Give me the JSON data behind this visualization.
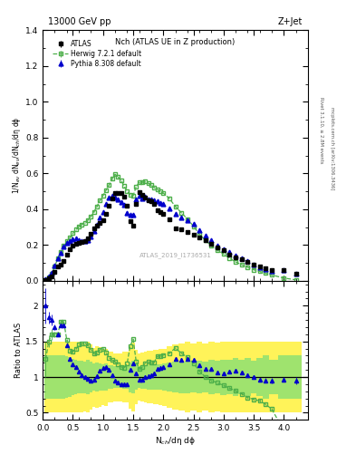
{
  "title_top": "13000 GeV pp",
  "title_right": "Z+Jet",
  "plot_title": "Nch (ATLAS UE in Z production)",
  "ylabel_main": "1/N$_{ev}$ dN$_{ev}$/dN$_{ch}$/dη dϕ",
  "ylabel_ratio": "Ratio to ATLAS",
  "xlabel": "N$_{ch}$/dη dϕ",
  "watermark": "ATLAS_2019_I1736531",
  "right_label": "mcplots.cern.ch [arXiv:1306.3436]",
  "rivet_label": "Rivet 3.1.10, ≥ 2.8M events",
  "atlas_x": [
    0.05,
    0.1,
    0.15,
    0.2,
    0.25,
    0.3,
    0.35,
    0.4,
    0.45,
    0.5,
    0.55,
    0.6,
    0.65,
    0.7,
    0.75,
    0.8,
    0.85,
    0.9,
    0.95,
    1.0,
    1.05,
    1.1,
    1.15,
    1.2,
    1.25,
    1.3,
    1.35,
    1.4,
    1.45,
    1.5,
    1.55,
    1.6,
    1.65,
    1.7,
    1.75,
    1.8,
    1.85,
    1.9,
    1.95,
    2.0,
    2.1,
    2.2,
    2.3,
    2.4,
    2.5,
    2.6,
    2.7,
    2.8,
    2.9,
    3.0,
    3.1,
    3.2,
    3.3,
    3.4,
    3.5,
    3.6,
    3.7,
    3.8,
    4.0,
    4.2
  ],
  "atlas_y": [
    0.004,
    0.012,
    0.025,
    0.05,
    0.078,
    0.09,
    0.11,
    0.145,
    0.175,
    0.195,
    0.205,
    0.21,
    0.215,
    0.22,
    0.235,
    0.26,
    0.29,
    0.31,
    0.325,
    0.34,
    0.375,
    0.42,
    0.46,
    0.49,
    0.49,
    0.49,
    0.47,
    0.42,
    0.335,
    0.31,
    0.43,
    0.495,
    0.48,
    0.465,
    0.45,
    0.445,
    0.43,
    0.395,
    0.385,
    0.375,
    0.345,
    0.295,
    0.285,
    0.27,
    0.255,
    0.24,
    0.225,
    0.205,
    0.185,
    0.17,
    0.148,
    0.13,
    0.118,
    0.105,
    0.09,
    0.078,
    0.068,
    0.058,
    0.06,
    0.04
  ],
  "atlas_yerr": [
    0.001,
    0.002,
    0.003,
    0.004,
    0.005,
    0.005,
    0.005,
    0.006,
    0.007,
    0.007,
    0.007,
    0.007,
    0.007,
    0.007,
    0.008,
    0.008,
    0.008,
    0.009,
    0.009,
    0.009,
    0.01,
    0.01,
    0.011,
    0.011,
    0.011,
    0.011,
    0.011,
    0.01,
    0.01,
    0.01,
    0.011,
    0.011,
    0.011,
    0.011,
    0.011,
    0.011,
    0.011,
    0.01,
    0.01,
    0.01,
    0.01,
    0.009,
    0.009,
    0.009,
    0.008,
    0.008,
    0.007,
    0.007,
    0.006,
    0.006,
    0.005,
    0.005,
    0.004,
    0.004,
    0.003,
    0.003,
    0.003,
    0.002,
    0.003,
    0.002
  ],
  "herwig_x": [
    0.05,
    0.1,
    0.15,
    0.2,
    0.25,
    0.3,
    0.35,
    0.4,
    0.45,
    0.5,
    0.55,
    0.6,
    0.65,
    0.7,
    0.75,
    0.8,
    0.85,
    0.9,
    0.95,
    1.0,
    1.05,
    1.1,
    1.15,
    1.2,
    1.25,
    1.3,
    1.35,
    1.4,
    1.45,
    1.5,
    1.55,
    1.6,
    1.65,
    1.7,
    1.75,
    1.8,
    1.85,
    1.9,
    1.95,
    2.0,
    2.1,
    2.2,
    2.3,
    2.4,
    2.5,
    2.6,
    2.7,
    2.8,
    2.9,
    3.0,
    3.1,
    3.2,
    3.3,
    3.4,
    3.5,
    3.6,
    3.7,
    3.8,
    4.0,
    4.2
  ],
  "herwig_y": [
    0.005,
    0.018,
    0.04,
    0.08,
    0.125,
    0.16,
    0.195,
    0.22,
    0.24,
    0.265,
    0.285,
    0.305,
    0.315,
    0.325,
    0.34,
    0.36,
    0.385,
    0.415,
    0.45,
    0.475,
    0.505,
    0.535,
    0.57,
    0.595,
    0.58,
    0.56,
    0.53,
    0.5,
    0.48,
    0.475,
    0.525,
    0.55,
    0.55,
    0.555,
    0.545,
    0.535,
    0.52,
    0.51,
    0.5,
    0.49,
    0.46,
    0.415,
    0.38,
    0.345,
    0.305,
    0.26,
    0.225,
    0.195,
    0.17,
    0.15,
    0.125,
    0.105,
    0.09,
    0.075,
    0.062,
    0.052,
    0.042,
    0.032,
    0.015,
    0.005
  ],
  "herwig_yerr": [
    0.001,
    0.001,
    0.002,
    0.002,
    0.002,
    0.002,
    0.002,
    0.002,
    0.002,
    0.002,
    0.002,
    0.002,
    0.002,
    0.002,
    0.002,
    0.002,
    0.002,
    0.002,
    0.002,
    0.002,
    0.002,
    0.002,
    0.002,
    0.002,
    0.002,
    0.002,
    0.002,
    0.002,
    0.002,
    0.002,
    0.002,
    0.002,
    0.002,
    0.002,
    0.002,
    0.002,
    0.002,
    0.002,
    0.002,
    0.002,
    0.002,
    0.002,
    0.002,
    0.002,
    0.002,
    0.002,
    0.002,
    0.002,
    0.002,
    0.002,
    0.002,
    0.002,
    0.002,
    0.002,
    0.002,
    0.002,
    0.001,
    0.001,
    0.001,
    0.001
  ],
  "pythia_x": [
    0.05,
    0.1,
    0.15,
    0.2,
    0.25,
    0.3,
    0.35,
    0.4,
    0.45,
    0.5,
    0.55,
    0.6,
    0.65,
    0.7,
    0.75,
    0.8,
    0.85,
    0.9,
    0.95,
    1.0,
    1.05,
    1.1,
    1.15,
    1.2,
    1.25,
    1.3,
    1.35,
    1.4,
    1.45,
    1.5,
    1.55,
    1.6,
    1.65,
    1.7,
    1.75,
    1.8,
    1.85,
    1.9,
    1.95,
    2.0,
    2.1,
    2.2,
    2.3,
    2.4,
    2.5,
    2.6,
    2.7,
    2.8,
    2.9,
    3.0,
    3.1,
    3.2,
    3.3,
    3.4,
    3.5,
    3.6,
    3.7,
    3.8,
    4.0,
    4.2
  ],
  "pythia_y": [
    0.008,
    0.022,
    0.045,
    0.085,
    0.125,
    0.155,
    0.19,
    0.21,
    0.22,
    0.23,
    0.235,
    0.225,
    0.22,
    0.22,
    0.228,
    0.248,
    0.278,
    0.315,
    0.355,
    0.385,
    0.43,
    0.465,
    0.475,
    0.465,
    0.455,
    0.438,
    0.425,
    0.38,
    0.368,
    0.368,
    0.455,
    0.475,
    0.462,
    0.468,
    0.455,
    0.455,
    0.45,
    0.442,
    0.432,
    0.43,
    0.405,
    0.372,
    0.355,
    0.34,
    0.318,
    0.28,
    0.252,
    0.228,
    0.198,
    0.178,
    0.16,
    0.142,
    0.125,
    0.108,
    0.09,
    0.075,
    0.065,
    0.055,
    0.058,
    0.038
  ],
  "pythia_yerr": [
    0.001,
    0.001,
    0.002,
    0.002,
    0.002,
    0.002,
    0.003,
    0.003,
    0.003,
    0.003,
    0.003,
    0.003,
    0.003,
    0.003,
    0.003,
    0.003,
    0.003,
    0.003,
    0.003,
    0.003,
    0.003,
    0.003,
    0.003,
    0.003,
    0.003,
    0.003,
    0.003,
    0.003,
    0.003,
    0.003,
    0.003,
    0.003,
    0.003,
    0.003,
    0.003,
    0.003,
    0.003,
    0.003,
    0.003,
    0.003,
    0.003,
    0.003,
    0.003,
    0.003,
    0.003,
    0.003,
    0.003,
    0.003,
    0.003,
    0.003,
    0.002,
    0.002,
    0.002,
    0.002,
    0.002,
    0.002,
    0.002,
    0.002,
    0.002,
    0.002
  ],
  "atlas_color": "#000000",
  "herwig_color": "#4daf4a",
  "pythia_color": "#0000cc",
  "ylim_main": [
    0,
    1.4
  ],
  "xlim": [
    0,
    4.4
  ],
  "ylim_ratio": [
    0.4,
    2.35
  ],
  "ratio_yticks": [
    0.5,
    1.0,
    1.5,
    2.0
  ],
  "ratio_ytick_labels": [
    "0.5",
    "1",
    "1.5",
    "2"
  ]
}
